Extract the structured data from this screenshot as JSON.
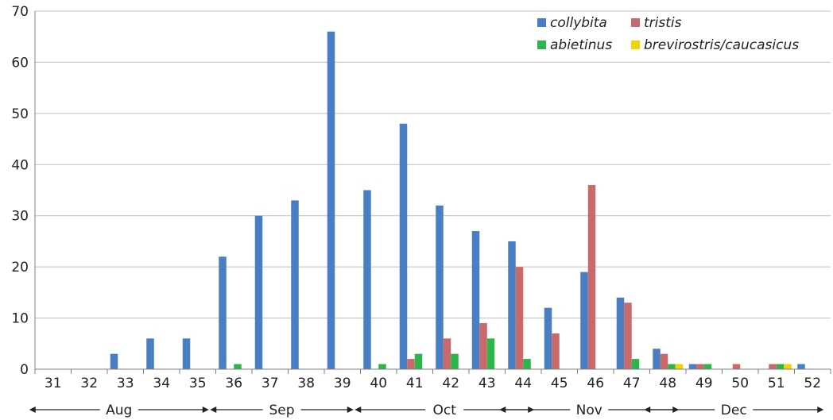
{
  "colors": {
    "collybita": "#4a7ec2",
    "tristis": "#c96a6a",
    "abietinus": "#2bb54a",
    "brevirostris_caucasicus": "#f2d400",
    "axis": "#7f7f7f"
  },
  "chart_data": {
    "type": "bar",
    "title": "",
    "xlabel": "",
    "ylabel": "",
    "ylim": [
      0,
      70
    ],
    "yticks": [
      0,
      10,
      20,
      30,
      40,
      50,
      60,
      70
    ],
    "categories": [
      "31",
      "32",
      "33",
      "34",
      "35",
      "36",
      "37",
      "38",
      "39",
      "40",
      "41",
      "42",
      "43",
      "44",
      "45",
      "46",
      "47",
      "48",
      "49",
      "50",
      "51",
      "52"
    ],
    "series": [
      {
        "name": "collybita",
        "color_key": "collybita",
        "values": [
          0,
          0,
          3,
          6,
          6,
          22,
          30,
          33,
          66,
          35,
          48,
          32,
          27,
          25,
          12,
          19,
          14,
          4,
          1,
          0,
          0,
          1
        ]
      },
      {
        "name": "tristis",
        "color_key": "tristis",
        "values": [
          0,
          0,
          0,
          0,
          0,
          0,
          0,
          0,
          0,
          0,
          2,
          6,
          9,
          20,
          7,
          36,
          13,
          3,
          1,
          1,
          1,
          0
        ]
      },
      {
        "name": "abietinus",
        "color_key": "abietinus",
        "values": [
          0,
          0,
          0,
          0,
          0,
          1,
          0,
          0,
          0,
          1,
          3,
          3,
          6,
          2,
          0,
          0,
          2,
          1,
          1,
          0,
          1,
          0
        ]
      },
      {
        "name": "brevirostris/caucasicus",
        "color_key": "brevirostris_caucasicus",
        "values": [
          0,
          0,
          0,
          0,
          0,
          0,
          0,
          0,
          0,
          0,
          0,
          0,
          0,
          0,
          0,
          0,
          0,
          1,
          0,
          0,
          1,
          0
        ]
      }
    ],
    "legend_position": "top-right",
    "legend_layout": [
      [
        "collybita",
        "tristis"
      ],
      [
        "abietinus",
        "brevirostris/caucasicus"
      ]
    ],
    "grid": "horizontal",
    "months": [
      {
        "label": "Aug",
        "from_week": "31",
        "to_week": "35"
      },
      {
        "label": "Sep",
        "from_week": "36",
        "to_week": "39"
      },
      {
        "label": "Oct",
        "from_week": "40",
        "to_week": "44"
      },
      {
        "label": "Nov",
        "from_week": "44",
        "to_week": "48"
      },
      {
        "label": "Dec",
        "from_week": "48",
        "to_week": "52"
      }
    ]
  }
}
